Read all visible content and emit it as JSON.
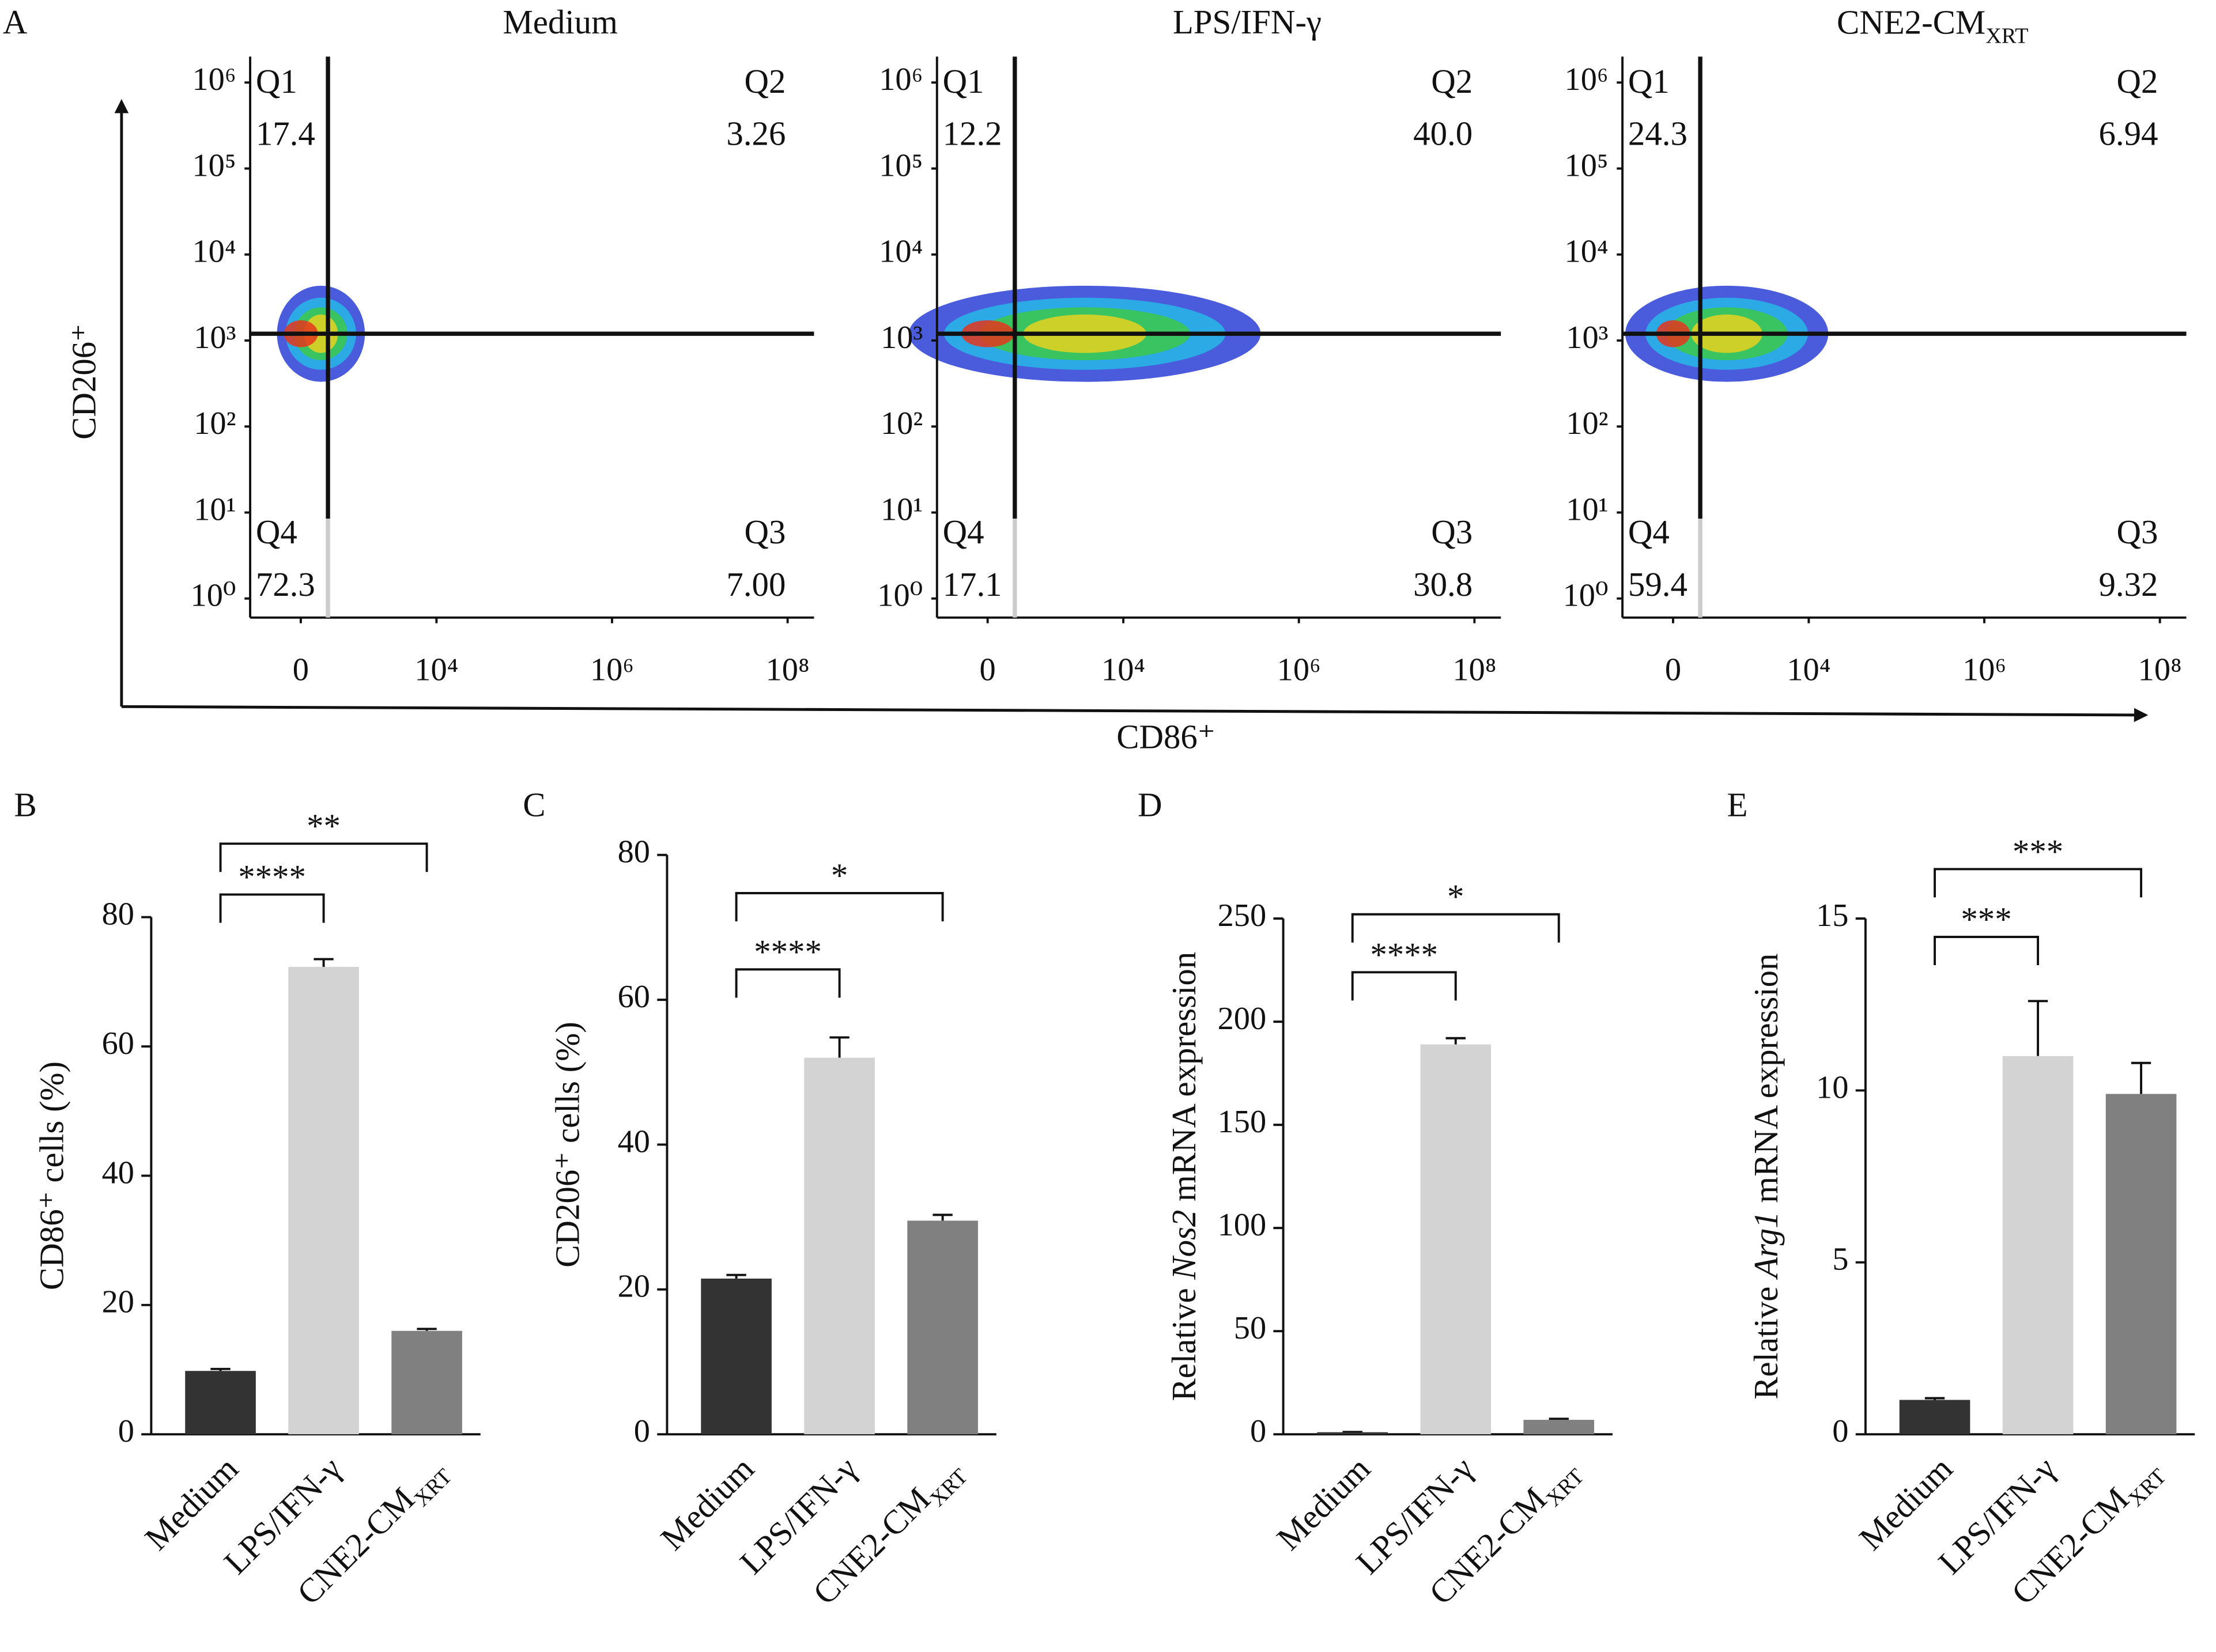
{
  "chart_data": [
    {
      "type": "flow",
      "panel_label": "A",
      "x_label": "CD86⁺",
      "y_label": "CD206⁺",
      "xscale": "biexponential",
      "yscale": "log",
      "xlim": [
        -1000,
        200000000
      ],
      "ylim": [
        0.6,
        2000000
      ],
      "xticks": [
        0,
        {
          "value": 10000,
          "label": "10⁴"
        },
        {
          "value": 1000000,
          "label": "10⁶"
        },
        {
          "value": 100000000,
          "label": "10⁸"
        }
      ],
      "yticks": [
        {
          "value": 1,
          "label": "10⁰"
        },
        {
          "value": 10,
          "label": "10¹"
        },
        {
          "value": 100,
          "label": "10²"
        },
        {
          "value": 1000,
          "label": "10³"
        },
        {
          "value": 10000,
          "label": "10⁴"
        },
        {
          "value": 100000,
          "label": "10⁵"
        },
        {
          "value": 1000000,
          "label": "10⁶"
        }
      ],
      "panels": [
        {
          "title": "Medium",
          "quadrants": [
            {
              "name": "Q1",
              "value": 17.4
            },
            {
              "name": "Q2",
              "value": 3.26
            },
            {
              "name": "Q3",
              "value": {
                "value": 7,
                "label": "7.00"
              }
            },
            {
              "name": "Q4",
              "value": 72.3
            }
          ]
        },
        {
          "title": "LPS/IFN-γ",
          "quadrants": [
            {
              "name": "Q1",
              "value": 12.2
            },
            {
              "name": "Q2",
              "value": {
                "value": 40,
                "label": "40.0"
              }
            },
            {
              "name": "Q3",
              "value": 30.8
            },
            {
              "name": "Q4",
              "value": 17.1
            }
          ]
        },
        {
          "title": {
            "text": "CNE2-CM",
            "sub": "XRT"
          },
          "quadrants": [
            {
              "name": "Q1",
              "value": 24.3
            },
            {
              "name": "Q2",
              "value": 6.94
            },
            {
              "name": "Q3",
              "value": 9.32
            },
            {
              "name": "Q4",
              "value": 59.4
            }
          ]
        }
      ]
    },
    {
      "type": "bar",
      "panel_label": "B",
      "categories": [
        "Medium",
        "LPS/IFN-γ",
        {
          "text": "CNE2-CM",
          "sub": "XRT"
        }
      ],
      "values": [
        9.8,
        72.3,
        16
      ],
      "errors": [
        0.3,
        1.2,
        0.3
      ],
      "colors": [
        "#333333",
        "#d3d3d3",
        "#808080"
      ],
      "y_label": [
        {
          "text": "CD86⁺ cells (%)"
        }
      ],
      "ylim": [
        0,
        80
      ],
      "yticks": [
        0,
        20,
        40,
        60,
        80
      ],
      "comparisons": [
        {
          "label": "****"
        },
        {
          "label": "**"
        }
      ]
    },
    {
      "type": "bar",
      "panel_label": "C",
      "categories": [
        "Medium",
        "LPS/IFN-γ",
        {
          "text": "CNE2-CM",
          "sub": "XRT"
        }
      ],
      "values": [
        21.5,
        52,
        29.5
      ],
      "errors": [
        0.5,
        2.8,
        0.8
      ],
      "colors": [
        "#333333",
        "#d3d3d3",
        "#808080"
      ],
      "y_label": [
        {
          "text": "CD206⁺ cells (%)"
        }
      ],
      "ylim": [
        0,
        80
      ],
      "yticks": [
        0,
        20,
        40,
        60,
        80
      ],
      "comparisons": [
        {
          "label": "****"
        },
        {
          "label": "*"
        }
      ]
    },
    {
      "type": "bar",
      "panel_label": "D",
      "categories": [
        "Medium",
        "LPS/IFN-γ",
        {
          "text": "CNE2-CM",
          "sub": "XRT"
        }
      ],
      "values": [
        1,
        189,
        7
      ],
      "errors": [
        0.1,
        3,
        0.5
      ],
      "colors": [
        "#333333",
        "#d3d3d3",
        "#808080"
      ],
      "y_label": [
        {
          "text": "Relative "
        },
        {
          "text": "Nos2",
          "italic": true
        },
        {
          "text": " mRNA expression"
        }
      ],
      "ylim": [
        0,
        250
      ],
      "yticks": [
        0,
        50,
        100,
        150,
        200,
        250
      ],
      "comparisons": [
        {
          "label": "****"
        },
        {
          "label": "*"
        }
      ]
    },
    {
      "type": "bar",
      "panel_label": "E",
      "categories": [
        "Medium",
        "LPS/IFN-γ",
        {
          "text": "CNE2-CM",
          "sub": "XRT"
        }
      ],
      "values": [
        1,
        11,
        9.9
      ],
      "errors": [
        0.05,
        1.6,
        0.9
      ],
      "colors": [
        "#333333",
        "#d3d3d3",
        "#808080"
      ],
      "y_label": [
        {
          "text": "Relative "
        },
        {
          "text": "Arg1",
          "italic": true
        },
        {
          "text": " mRNA expression"
        }
      ],
      "ylim": [
        0,
        15
      ],
      "yticks": [
        0,
        5,
        10,
        15
      ],
      "comparisons": [
        {
          "label": "***"
        },
        {
          "label": "***"
        }
      ]
    }
  ]
}
